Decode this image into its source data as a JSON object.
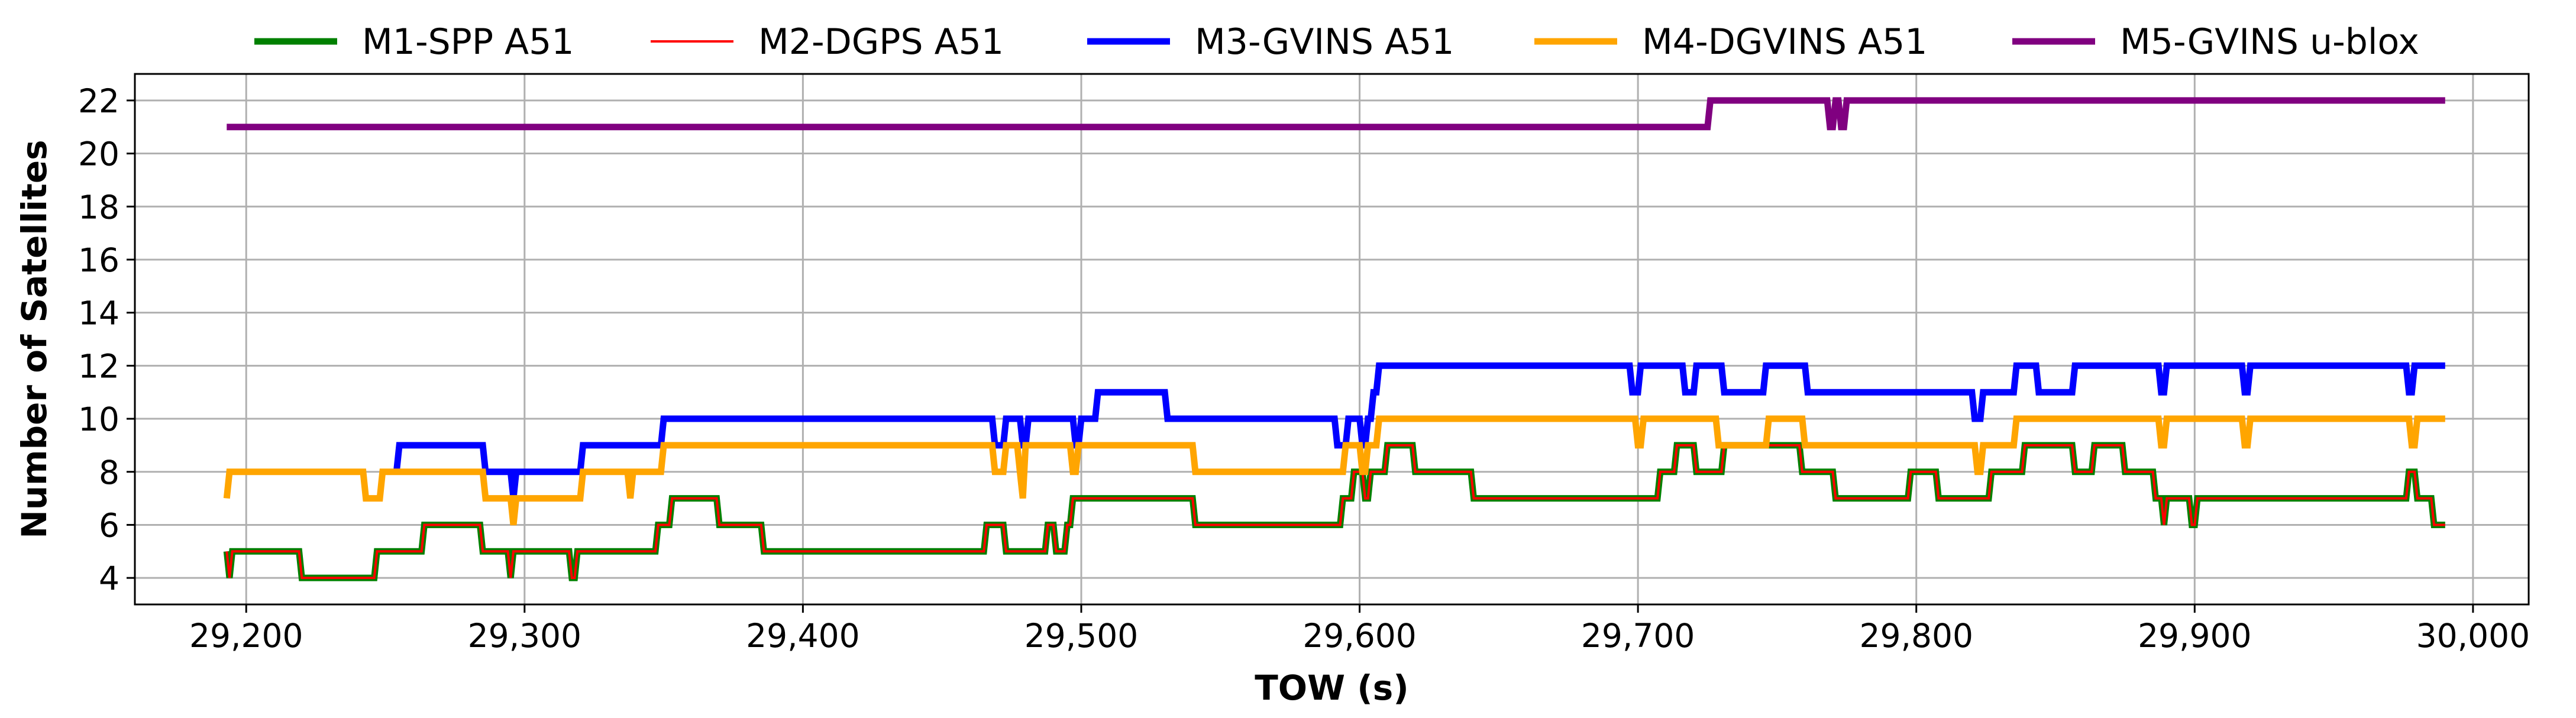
{
  "chart_data": {
    "type": "line",
    "xlabel": "TOW (s)",
    "ylabel": "Number of Satellites",
    "xlim": [
      29160,
      30020
    ],
    "ylim": [
      3,
      23
    ],
    "x_ticks": [
      29200,
      29300,
      29400,
      29500,
      29600,
      29700,
      29800,
      29900,
      30000
    ],
    "x_tick_labels": [
      "29,200",
      "29,300",
      "29,400",
      "29,500",
      "29,600",
      "29,700",
      "29,800",
      "29,900",
      "30,000"
    ],
    "y_ticks": [
      4,
      6,
      8,
      10,
      12,
      14,
      16,
      18,
      20,
      22
    ],
    "y_tick_labels": [
      "4",
      "6",
      "8",
      "10",
      "12",
      "14",
      "16",
      "18",
      "20",
      "22"
    ],
    "grid": true,
    "legend_position": "top-outside",
    "series": [
      {
        "name": "M1-SPP A51",
        "color": "#008000",
        "line_weight": "thick",
        "x": [
          29193,
          29194,
          29195,
          29196,
          29219,
          29220,
          29221,
          29222,
          29246,
          29247,
          29263,
          29264,
          29284,
          29285,
          29294,
          29295,
          29296,
          29297,
          29316,
          29317,
          29318,
          29319,
          29347,
          29348,
          29352,
          29353,
          29369,
          29370,
          29385,
          29386,
          29389,
          29390,
          29465,
          29466,
          29472,
          29473,
          29487,
          29488,
          29490,
          29491,
          29494,
          29495,
          29496,
          29497,
          29540,
          29541,
          29593,
          29594,
          29597,
          29598,
          29601,
          29602,
          29603,
          29604,
          29609,
          29610,
          29619,
          29620,
          29640,
          29641,
          29707,
          29708,
          29713,
          29714,
          29720,
          29721,
          29730,
          29731,
          29758,
          29759,
          29770,
          29771,
          29797,
          29798,
          29807,
          29808,
          29826,
          29827,
          29838,
          29839,
          29856,
          29857,
          29863,
          29864,
          29874,
          29875,
          29885,
          29886,
          29888,
          29889,
          29890,
          29891,
          29898,
          29899,
          29900,
          29901,
          29976,
          29977,
          29979,
          29980,
          29985,
          29986,
          29990
        ],
        "values": [
          5,
          4,
          5,
          5,
          5,
          4,
          4,
          4,
          4,
          5,
          5,
          6,
          6,
          5,
          5,
          4,
          5,
          5,
          5,
          4,
          4,
          5,
          5,
          6,
          6,
          7,
          7,
          6,
          6,
          5,
          5,
          5,
          5,
          6,
          6,
          5,
          5,
          6,
          6,
          5,
          5,
          6,
          6,
          7,
          7,
          6,
          6,
          7,
          7,
          8,
          8,
          7,
          7,
          8,
          8,
          9,
          9,
          8,
          8,
          7,
          7,
          8,
          8,
          9,
          9,
          8,
          8,
          9,
          9,
          8,
          8,
          7,
          7,
          8,
          8,
          7,
          7,
          8,
          8,
          9,
          9,
          8,
          8,
          9,
          9,
          8,
          8,
          7,
          7,
          6,
          7,
          7,
          7,
          6,
          6,
          7,
          7,
          8,
          8,
          7,
          7,
          6,
          6
        ]
      },
      {
        "name": "M2-DGPS A51",
        "color": "#ff0000",
        "line_weight": "thin",
        "x": [
          29193,
          29194,
          29195,
          29196,
          29219,
          29220,
          29221,
          29222,
          29246,
          29247,
          29263,
          29264,
          29284,
          29285,
          29294,
          29295,
          29296,
          29297,
          29316,
          29317,
          29318,
          29319,
          29347,
          29348,
          29352,
          29353,
          29369,
          29370,
          29385,
          29386,
          29389,
          29390,
          29465,
          29466,
          29472,
          29473,
          29487,
          29488,
          29490,
          29491,
          29494,
          29495,
          29496,
          29497,
          29540,
          29541,
          29593,
          29594,
          29597,
          29598,
          29601,
          29602,
          29603,
          29604,
          29609,
          29610,
          29619,
          29620,
          29640,
          29641,
          29707,
          29708,
          29713,
          29714,
          29720,
          29721,
          29730,
          29731,
          29758,
          29759,
          29770,
          29771,
          29797,
          29798,
          29807,
          29808,
          29826,
          29827,
          29838,
          29839,
          29856,
          29857,
          29863,
          29864,
          29874,
          29875,
          29885,
          29886,
          29888,
          29889,
          29890,
          29891,
          29898,
          29899,
          29900,
          29901,
          29976,
          29977,
          29979,
          29980,
          29985,
          29986,
          29990
        ],
        "values": [
          5,
          4,
          5,
          5,
          5,
          4,
          4,
          4,
          4,
          5,
          5,
          6,
          6,
          5,
          5,
          4,
          5,
          5,
          5,
          4,
          4,
          5,
          5,
          6,
          6,
          7,
          7,
          6,
          6,
          5,
          5,
          5,
          5,
          6,
          6,
          5,
          5,
          6,
          6,
          5,
          5,
          6,
          6,
          7,
          7,
          6,
          6,
          7,
          7,
          8,
          8,
          7,
          7,
          8,
          8,
          9,
          9,
          8,
          8,
          7,
          7,
          8,
          8,
          9,
          9,
          8,
          8,
          9,
          9,
          8,
          8,
          7,
          7,
          8,
          8,
          7,
          7,
          8,
          8,
          9,
          9,
          8,
          8,
          9,
          9,
          8,
          8,
          7,
          7,
          6,
          7,
          7,
          7,
          6,
          6,
          7,
          7,
          8,
          8,
          7,
          7,
          6,
          6
        ]
      },
      {
        "name": "M3-GVINS A51",
        "color": "#0000ff",
        "line_weight": "thick",
        "x": [
          29254,
          29255,
          29285,
          29286,
          29295,
          29296,
          29297,
          29298,
          29320,
          29321,
          29349,
          29350,
          29468,
          29469,
          29472,
          29473,
          29478,
          29479,
          29480,
          29481,
          29497,
          29498,
          29499,
          29500,
          29505,
          29506,
          29530,
          29531,
          29591,
          29592,
          29595,
          29596,
          29600,
          29601,
          29602,
          29603,
          29604,
          29605,
          29606,
          29607,
          29608,
          29609,
          29697,
          29698,
          29700,
          29701,
          29703,
          29704,
          29716,
          29717,
          29720,
          29721,
          29730,
          29731,
          29745,
          29746,
          29760,
          29761,
          29820,
          29821,
          29823,
          29824,
          29835,
          29836,
          29843,
          29844,
          29856,
          29857,
          29887,
          29888,
          29889,
          29890,
          29917,
          29918,
          29919,
          29920,
          29976,
          29977,
          29978,
          29979,
          29990
        ],
        "values": [
          8,
          9,
          9,
          8,
          8,
          7,
          8,
          8,
          8,
          9,
          9,
          10,
          10,
          9,
          9,
          10,
          10,
          9,
          9,
          10,
          10,
          9,
          9,
          10,
          10,
          11,
          11,
          10,
          10,
          9,
          9,
          10,
          10,
          9,
          9,
          10,
          10,
          11,
          11,
          12,
          12,
          12,
          12,
          11,
          11,
          12,
          12,
          12,
          12,
          11,
          11,
          12,
          12,
          11,
          11,
          12,
          12,
          11,
          11,
          10,
          10,
          11,
          11,
          12,
          12,
          11,
          11,
          12,
          12,
          11,
          11,
          12,
          12,
          11,
          11,
          12,
          12,
          11,
          11,
          12,
          12
        ]
      },
      {
        "name": "M4-DGVINS A51",
        "color": "#ffa500",
        "line_weight": "thick",
        "x": [
          29193,
          29194,
          29195,
          29196,
          29242,
          29243,
          29248,
          29249,
          29285,
          29286,
          29295,
          29296,
          29297,
          29298,
          29320,
          29321,
          29337,
          29338,
          29339,
          29340,
          29349,
          29350,
          29468,
          29469,
          29472,
          29473,
          29477,
          29478,
          29479,
          29480,
          29496,
          29497,
          29498,
          29499,
          29540,
          29541,
          29594,
          29595,
          29600,
          29601,
          29602,
          29603,
          29606,
          29607,
          29699,
          29700,
          29701,
          29702,
          29728,
          29729,
          29746,
          29747,
          29759,
          29760,
          29821,
          29822,
          29823,
          29824,
          29835,
          29836,
          29887,
          29888,
          29889,
          29890,
          29917,
          29918,
          29919,
          29920,
          29977,
          29978,
          29979,
          29980,
          29990
        ],
        "values": [
          7,
          8,
          8,
          8,
          8,
          7,
          7,
          8,
          8,
          7,
          7,
          6,
          7,
          7,
          7,
          8,
          8,
          7,
          8,
          8,
          8,
          9,
          9,
          8,
          8,
          9,
          9,
          8,
          7,
          9,
          9,
          8,
          8,
          9,
          9,
          8,
          8,
          9,
          9,
          8,
          8,
          9,
          9,
          10,
          10,
          9,
          9,
          10,
          10,
          9,
          9,
          10,
          10,
          9,
          9,
          8,
          8,
          9,
          9,
          10,
          10,
          9,
          9,
          10,
          10,
          9,
          9,
          10,
          10,
          9,
          9,
          10,
          10
        ]
      },
      {
        "name": "M5-GVINS u-blox",
        "color": "#800080",
        "line_weight": "thick",
        "x": [
          29193,
          29725,
          29726,
          29768,
          29769,
          29770,
          29771,
          29772,
          29773,
          29774,
          29775,
          29990
        ],
        "values": [
          21,
          21,
          22,
          22,
          21,
          21,
          22,
          22,
          21,
          21,
          22,
          22
        ]
      }
    ]
  }
}
